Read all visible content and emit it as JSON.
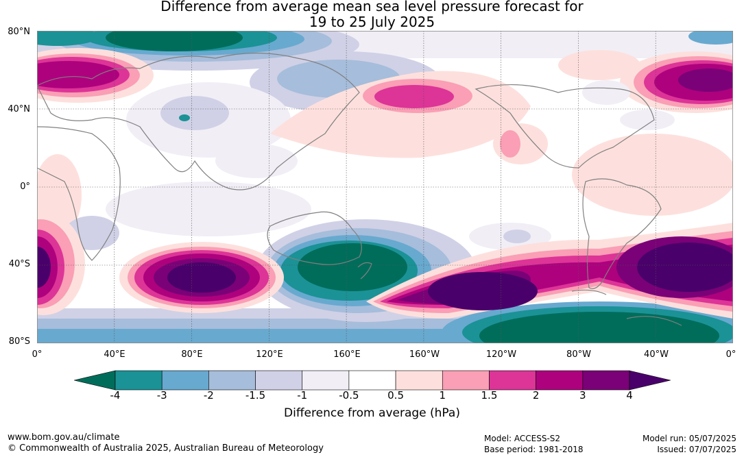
{
  "title_line1": "Difference from average mean sea level pressure forecast for",
  "title_line2": "19 to 25 July 2025",
  "map": {
    "lat_labels": [
      "80°N",
      "40°N",
      "0°",
      "40°S",
      "80°S"
    ],
    "lon_labels": [
      "0°",
      "40°E",
      "80°E",
      "120°E",
      "160°E",
      "160°W",
      "120°W",
      "80°W",
      "40°W",
      "0°"
    ],
    "colors": {
      "strong_low": "#006d5b",
      "low": "#1b9296",
      "moderate_low": "#68a9cf",
      "weak_low": "#a6bddb",
      "slight_low": "#d0d1e6",
      "very_slight_low": "#f1eef6",
      "neutral": "#ffffff",
      "very_slight_high": "#fde0dd",
      "slight_high": "#fa9fb5",
      "weak_high": "#dd3497",
      "moderate_high": "#ae017e",
      "high": "#7a0177",
      "strong_high": "#49006a",
      "coastline": "#808080"
    }
  },
  "colorbar": {
    "colors": [
      "#006d5b",
      "#1b9296",
      "#68a9cf",
      "#a6bddb",
      "#d0d1e6",
      "#f1eef6",
      "#ffffff",
      "#fde0dd",
      "#fa9fb5",
      "#dd3497",
      "#ae017e",
      "#7a0177",
      "#49006a"
    ],
    "ticks": [
      "-4",
      "-3",
      "-2",
      "-1.5",
      "-1",
      "-0.5",
      "0.5",
      "1",
      "1.5",
      "2",
      "3",
      "4"
    ],
    "label": "Difference from average (hPa)"
  },
  "footer": {
    "website": "www.bom.gov.au/climate",
    "copyright": "© Commonwealth of Australia 2025, Australian Bureau of Meteorology",
    "model": "Model: ACCESS-S2",
    "base_period": "Base period: 1981-2018",
    "model_run": "Model run: 05/07/2025",
    "issued": "Issued: 07/07/2025"
  }
}
